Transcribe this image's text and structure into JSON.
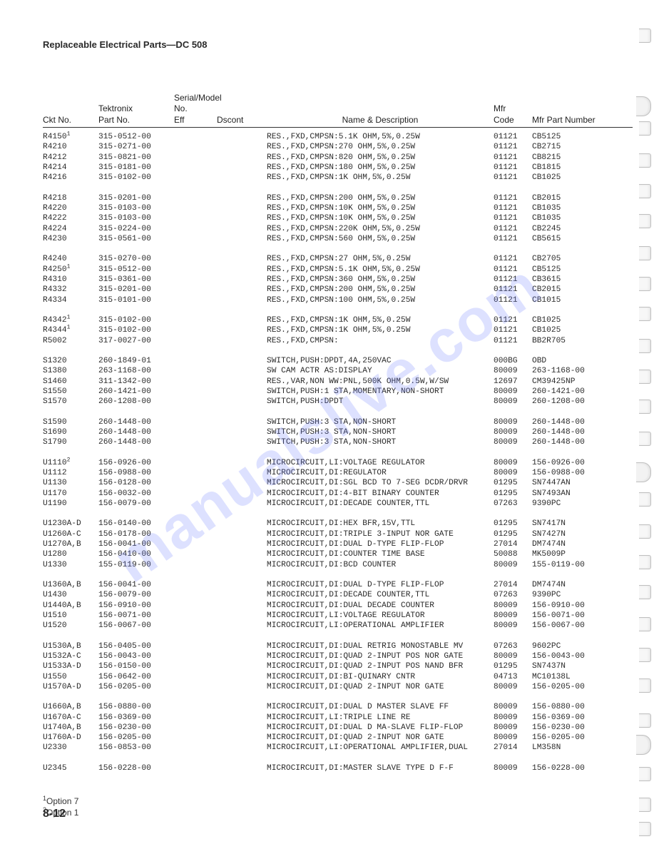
{
  "meta": {
    "title": "Replaceable Electrical Parts—DC 508",
    "page_number": "8-12",
    "watermark_text": "manualslive.com",
    "watermark_color": "rgba(100,120,255,0.22)",
    "font_mono": "Courier New",
    "font_sans": "Arial",
    "text_color": "#2b2b2b",
    "background_color": "#ffffff"
  },
  "headers": {
    "ckt": "Ckt No.",
    "tek_top": "Tektronix",
    "part": "Part No.",
    "serial_top": "Serial/Model No.",
    "eff": "Eff",
    "dscont": "Dscont",
    "name": "Name & Description",
    "mfr_top": "Mfr",
    "mfr": "Code",
    "mpn": "Mfr Part Number"
  },
  "groups": [
    [
      {
        "ckt": "R4150",
        "fn": "1",
        "part": "315-0512-00",
        "name": "RES.,FXD,CMPSN:5.1K OHM,5%,0.25W",
        "mfr": "01121",
        "mpn": "CB5125"
      },
      {
        "ckt": "R4210",
        "part": "315-0271-00",
        "name": "RES.,FXD,CMPSN:270 OHM,5%,0.25W",
        "mfr": "01121",
        "mpn": "CB2715"
      },
      {
        "ckt": "R4212",
        "part": "315-0821-00",
        "name": "RES.,FXD,CMPSN:820 OHM,5%,0.25W",
        "mfr": "01121",
        "mpn": "CB8215"
      },
      {
        "ckt": "R4214",
        "part": "315-0181-00",
        "name": "RES.,FXD,CMPSN:180 OHM,5%,0.25W",
        "mfr": "01121",
        "mpn": "CB1815"
      },
      {
        "ckt": "R4216",
        "part": "315-0102-00",
        "name": "RES.,FXD,CMPSN:1K OHM,5%,0.25W",
        "mfr": "01121",
        "mpn": "CB1025"
      }
    ],
    [
      {
        "ckt": "R4218",
        "part": "315-0201-00",
        "name": "RES.,FXD,CMPSN:200 OHM,5%,0.25W",
        "mfr": "01121",
        "mpn": "CB2015"
      },
      {
        "ckt": "R4220",
        "part": "315-0103-00",
        "name": "RES.,FXD,CMPSN:10K OHM,5%,0.25W",
        "mfr": "01121",
        "mpn": "CB1035"
      },
      {
        "ckt": "R4222",
        "part": "315-0103-00",
        "name": "RES.,FXD,CMPSN:10K OHM,5%,0.25W",
        "mfr": "01121",
        "mpn": "CB1035"
      },
      {
        "ckt": "R4224",
        "part": "315-0224-00",
        "name": "RES.,FXD,CMPSN:220K OHM,5%,0.25W",
        "mfr": "01121",
        "mpn": "CB2245"
      },
      {
        "ckt": "R4230",
        "part": "315-0561-00",
        "name": "RES.,FXD,CMPSN:560 OHM,5%,0.25W",
        "mfr": "01121",
        "mpn": "CB5615"
      }
    ],
    [
      {
        "ckt": "R4240",
        "part": "315-0270-00",
        "name": "RES.,FXD,CMPSN:27 OHM,5%,0.25W",
        "mfr": "01121",
        "mpn": "CB2705"
      },
      {
        "ckt": "R4250",
        "fn": "1",
        "part": "315-0512-00",
        "name": "RES.,FXD,CMPSN:5.1K OHM,5%,0.25W",
        "mfr": "01121",
        "mpn": "CB5125"
      },
      {
        "ckt": "R4310",
        "part": "315-0361-00",
        "name": "RES.,FXD,CMPSN:360 OHM,5%,0.25W",
        "mfr": "01121",
        "mpn": "CB3615"
      },
      {
        "ckt": "R4332",
        "part": "315-0201-00",
        "name": "RES.,FXD,CMPSN:200 OHM,5%,0.25W",
        "mfr": "01121",
        "mpn": "CB2015"
      },
      {
        "ckt": "R4334",
        "part": "315-0101-00",
        "name": "RES.,FXD,CMPSN:100 OHM,5%,0.25W",
        "mfr": "01121",
        "mpn": "CB1015"
      }
    ],
    [
      {
        "ckt": "R4342",
        "fn": "1",
        "part": "315-0102-00",
        "name": "RES.,FXD,CMPSN:1K OHM,5%,0.25W",
        "mfr": "01121",
        "mpn": "CB1025"
      },
      {
        "ckt": "R4344",
        "fn": "1",
        "part": "315-0102-00",
        "name": "RES.,FXD,CMPSN:1K OHM,5%,0.25W",
        "mfr": "01121",
        "mpn": "CB1025"
      },
      {
        "ckt": "R5002",
        "part": "317-0027-00",
        "name": "RES.,FXD,CMPSN:",
        "mfr": "01121",
        "mpn": "BB2R705"
      }
    ],
    [
      {
        "ckt": "S1320",
        "part": "260-1849-01",
        "name": "SWITCH,PUSH:DPDT,4A,250VAC",
        "mfr": "000BG",
        "mpn": "OBD"
      },
      {
        "ckt": "S1380",
        "part": "263-1168-00",
        "name": "SW CAM ACTR AS:DISPLAY",
        "mfr": "80009",
        "mpn": "263-1168-00"
      },
      {
        "ckt": "S1460",
        "part": "311-1342-00",
        "name": "RES.,VAR,NON WW:PNL,500K OHM,0.5W,W/SW",
        "mfr": "12697",
        "mpn": "CM39425NP"
      },
      {
        "ckt": "S1550",
        "part": "260-1421-00",
        "name": "SWITCH,PUSH:1 STA,MOMENTARY,NON-SHORT",
        "mfr": "80009",
        "mpn": "260-1421-00"
      },
      {
        "ckt": "S1570",
        "part": "260-1208-00",
        "name": "SWITCH,PUSH:DPDT",
        "mfr": "80009",
        "mpn": "260-1208-00"
      }
    ],
    [
      {
        "ckt": "S1590",
        "part": "260-1448-00",
        "name": "SWITCH,PUSH:3 STA,NON-SHORT",
        "mfr": "80009",
        "mpn": "260-1448-00"
      },
      {
        "ckt": "S1690",
        "part": "260-1448-00",
        "name": "SWITCH,PUSH:3 STA,NON-SHORT",
        "mfr": "80009",
        "mpn": "260-1448-00"
      },
      {
        "ckt": "S1790",
        "part": "260-1448-00",
        "name": "SWITCH,PUSH:3 STA,NON-SHORT",
        "mfr": "80009",
        "mpn": "260-1448-00"
      }
    ],
    [
      {
        "ckt": "U1110",
        "fn": "2",
        "part": "156-0926-00",
        "name": "MICROCIRCUIT,LI:VOLTAGE REGULATOR",
        "mfr": "80009",
        "mpn": "156-0926-00"
      },
      {
        "ckt": "U1112",
        "part": "156-0988-00",
        "name": "MICROCIRCUIT,DI:REGULATOR",
        "mfr": "80009",
        "mpn": "156-0988-00"
      },
      {
        "ckt": "U1130",
        "part": "156-0128-00",
        "name": "MICROCIRCUIT,DI:SGL BCD TO 7-SEG DCDR/DRVR",
        "mfr": "01295",
        "mpn": "SN7447AN"
      },
      {
        "ckt": "U1170",
        "part": "156-0032-00",
        "name": "MICROCIRCUIT,DI:4-BIT BINARY COUNTER",
        "mfr": "01295",
        "mpn": "SN7493AN"
      },
      {
        "ckt": "U1190",
        "part": "156-0079-00",
        "name": "MICROCIRCUIT,DI:DECADE COUNTER,TTL",
        "mfr": "07263",
        "mpn": "9390PC"
      }
    ],
    [
      {
        "ckt": "U1230A-D",
        "part": "156-0140-00",
        "name": "MICROCIRCUIT,DI:HEX BFR,15V,TTL",
        "mfr": "01295",
        "mpn": "SN7417N"
      },
      {
        "ckt": "U1260A-C",
        "part": "156-0178-00",
        "name": "MICROCIRCUIT,DI:TRIPLE 3-INPUT NOR GATE",
        "mfr": "01295",
        "mpn": "SN7427N"
      },
      {
        "ckt": "U1270A,B",
        "part": "156-0041-00",
        "name": "MICROCIRCUIT,DI:DUAL D-TYPE FLIP-FLOP",
        "mfr": "27014",
        "mpn": "DM7474N"
      },
      {
        "ckt": "U1280",
        "part": "156-0410-00",
        "name": "MICROCIRCUIT,DI:COUNTER TIME BASE",
        "mfr": "50088",
        "mpn": "MK5009P"
      },
      {
        "ckt": "U1330",
        "part": "155-0119-00",
        "name": "MICROCIRCUIT,DI:BCD COUNTER",
        "mfr": "80009",
        "mpn": "155-0119-00"
      }
    ],
    [
      {
        "ckt": "U1360A,B",
        "part": "156-0041-00",
        "name": "MICROCIRCUIT,DI:DUAL D-TYPE FLIP-FLOP",
        "mfr": "27014",
        "mpn": "DM7474N"
      },
      {
        "ckt": "U1430",
        "part": "156-0079-00",
        "name": "MICROCIRCUIT,DI:DECADE COUNTER,TTL",
        "mfr": "07263",
        "mpn": "9390PC"
      },
      {
        "ckt": "U1440A,B",
        "part": "156-0910-00",
        "name": "MICROCIRCUIT,DI:DUAL DECADE COUNTER",
        "mfr": "80009",
        "mpn": "156-0910-00"
      },
      {
        "ckt": "U1510",
        "part": "156-0071-00",
        "name": "MICROCIRCUIT,LI:VOLTAGE REGULATOR",
        "mfr": "80009",
        "mpn": "156-0071-00"
      },
      {
        "ckt": "U1520",
        "part": "156-0067-00",
        "name": "MICROCIRCUIT,LI:OPERATIONAL AMPLIFIER",
        "mfr": "80009",
        "mpn": "156-0067-00"
      }
    ],
    [
      {
        "ckt": "U1530A,B",
        "part": "156-0405-00",
        "name": "MICROCIRCUIT,DI:DUAL RETRIG MONOSTABLE MV",
        "mfr": "07263",
        "mpn": "9602PC"
      },
      {
        "ckt": "U1532A-C",
        "part": "156-0043-00",
        "name": "MICROCIRCUIT,DI:QUAD 2-INPUT POS NOR GATE",
        "mfr": "80009",
        "mpn": "156-0043-00"
      },
      {
        "ckt": "U1533A-D",
        "part": "156-0150-00",
        "name": "MICROCIRCUIT,DI:QUAD 2-INPUT POS NAND BFR",
        "mfr": "01295",
        "mpn": "SN7437N"
      },
      {
        "ckt": "U1550",
        "part": "156-0642-00",
        "name": "MICROCIRCUIT,DI:BI-QUINARY CNTR",
        "mfr": "04713",
        "mpn": "MC10138L"
      },
      {
        "ckt": "U1570A-D",
        "part": "156-0205-00",
        "name": "MICROCIRCUIT,DI:QUAD 2-INPUT NOR GATE",
        "mfr": "80009",
        "mpn": "156-0205-00"
      }
    ],
    [
      {
        "ckt": "U1660A,B",
        "part": "156-0880-00",
        "name": "MICROCIRCUIT,DI:DUAL D MASTER SLAVE FF",
        "mfr": "80009",
        "mpn": "156-0880-00"
      },
      {
        "ckt": "U1670A-C",
        "part": "156-0369-00",
        "name": "MICROCIRCUIT,LI:TRIPLE LINE RE",
        "mfr": "80009",
        "mpn": "156-0369-00"
      },
      {
        "ckt": "U1740A,B",
        "part": "156-0230-00",
        "name": "MICROCIRCUIT,DI:DUAL D MA-SLAVE FLIP-FLOP",
        "mfr": "80009",
        "mpn": "156-0230-00"
      },
      {
        "ckt": "U1760A-D",
        "part": "156-0205-00",
        "name": "MICROCIRCUIT,DI:QUAD 2-INPUT NOR GATE",
        "mfr": "80009",
        "mpn": "156-0205-00"
      },
      {
        "ckt": "U2330",
        "part": "156-0853-00",
        "name": "MICROCIRCUIT,LI:OPERATIONAL AMPLIFIER,DUAL",
        "mfr": "27014",
        "mpn": "LM358N"
      }
    ],
    [
      {
        "ckt": "U2345",
        "part": "156-0228-00",
        "name": "MICROCIRCUIT,DI:MASTER SLAVE TYPE D F-F",
        "mfr": "80009",
        "mpn": "156-0228-00"
      }
    ]
  ],
  "footnotes": [
    {
      "num": "1",
      "text": "Option 7"
    },
    {
      "num": "2",
      "text": "Option 1"
    }
  ],
  "binder_marks": {
    "punches": [
      40,
      135,
      170,
      215,
      258,
      300,
      345,
      388,
      430,
      475,
      518,
      560,
      605,
      648,
      690,
      735,
      778,
      820,
      865,
      908,
      951,
      1000,
      1030,
      1075,
      1118,
      1152
    ],
    "big_punches": [
      135,
      648,
      1030
    ]
  }
}
